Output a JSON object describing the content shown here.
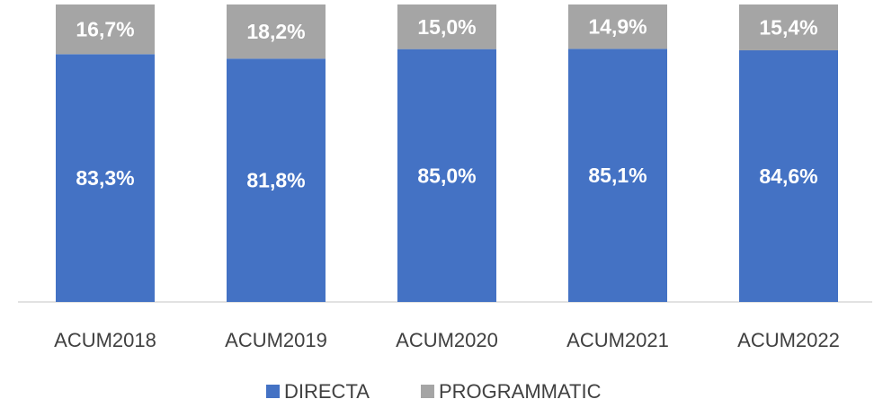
{
  "chart_data": {
    "type": "stacked_bar",
    "categories": [
      "ACUM2018",
      "ACUM2019",
      "ACUM2020",
      "ACUM2021",
      "ACUM2022"
    ],
    "series": [
      {
        "name": "DIRECTA",
        "color": "#4472c4",
        "values": [
          83.3,
          81.8,
          85.0,
          85.1,
          84.6
        ],
        "value_labels": [
          "83,3%",
          "81,8%",
          "85,0%",
          "85,1%",
          "84,6%"
        ]
      },
      {
        "name": "PROGRAMMATIC",
        "color": "#a5a5a5",
        "values": [
          16.7,
          18.2,
          15.0,
          14.9,
          15.4
        ],
        "value_labels": [
          "16,7%",
          "18,2%",
          "15,0%",
          "14,9%",
          "15,4%"
        ]
      }
    ],
    "ylim": [
      0,
      100
    ],
    "legend": "bottom"
  }
}
